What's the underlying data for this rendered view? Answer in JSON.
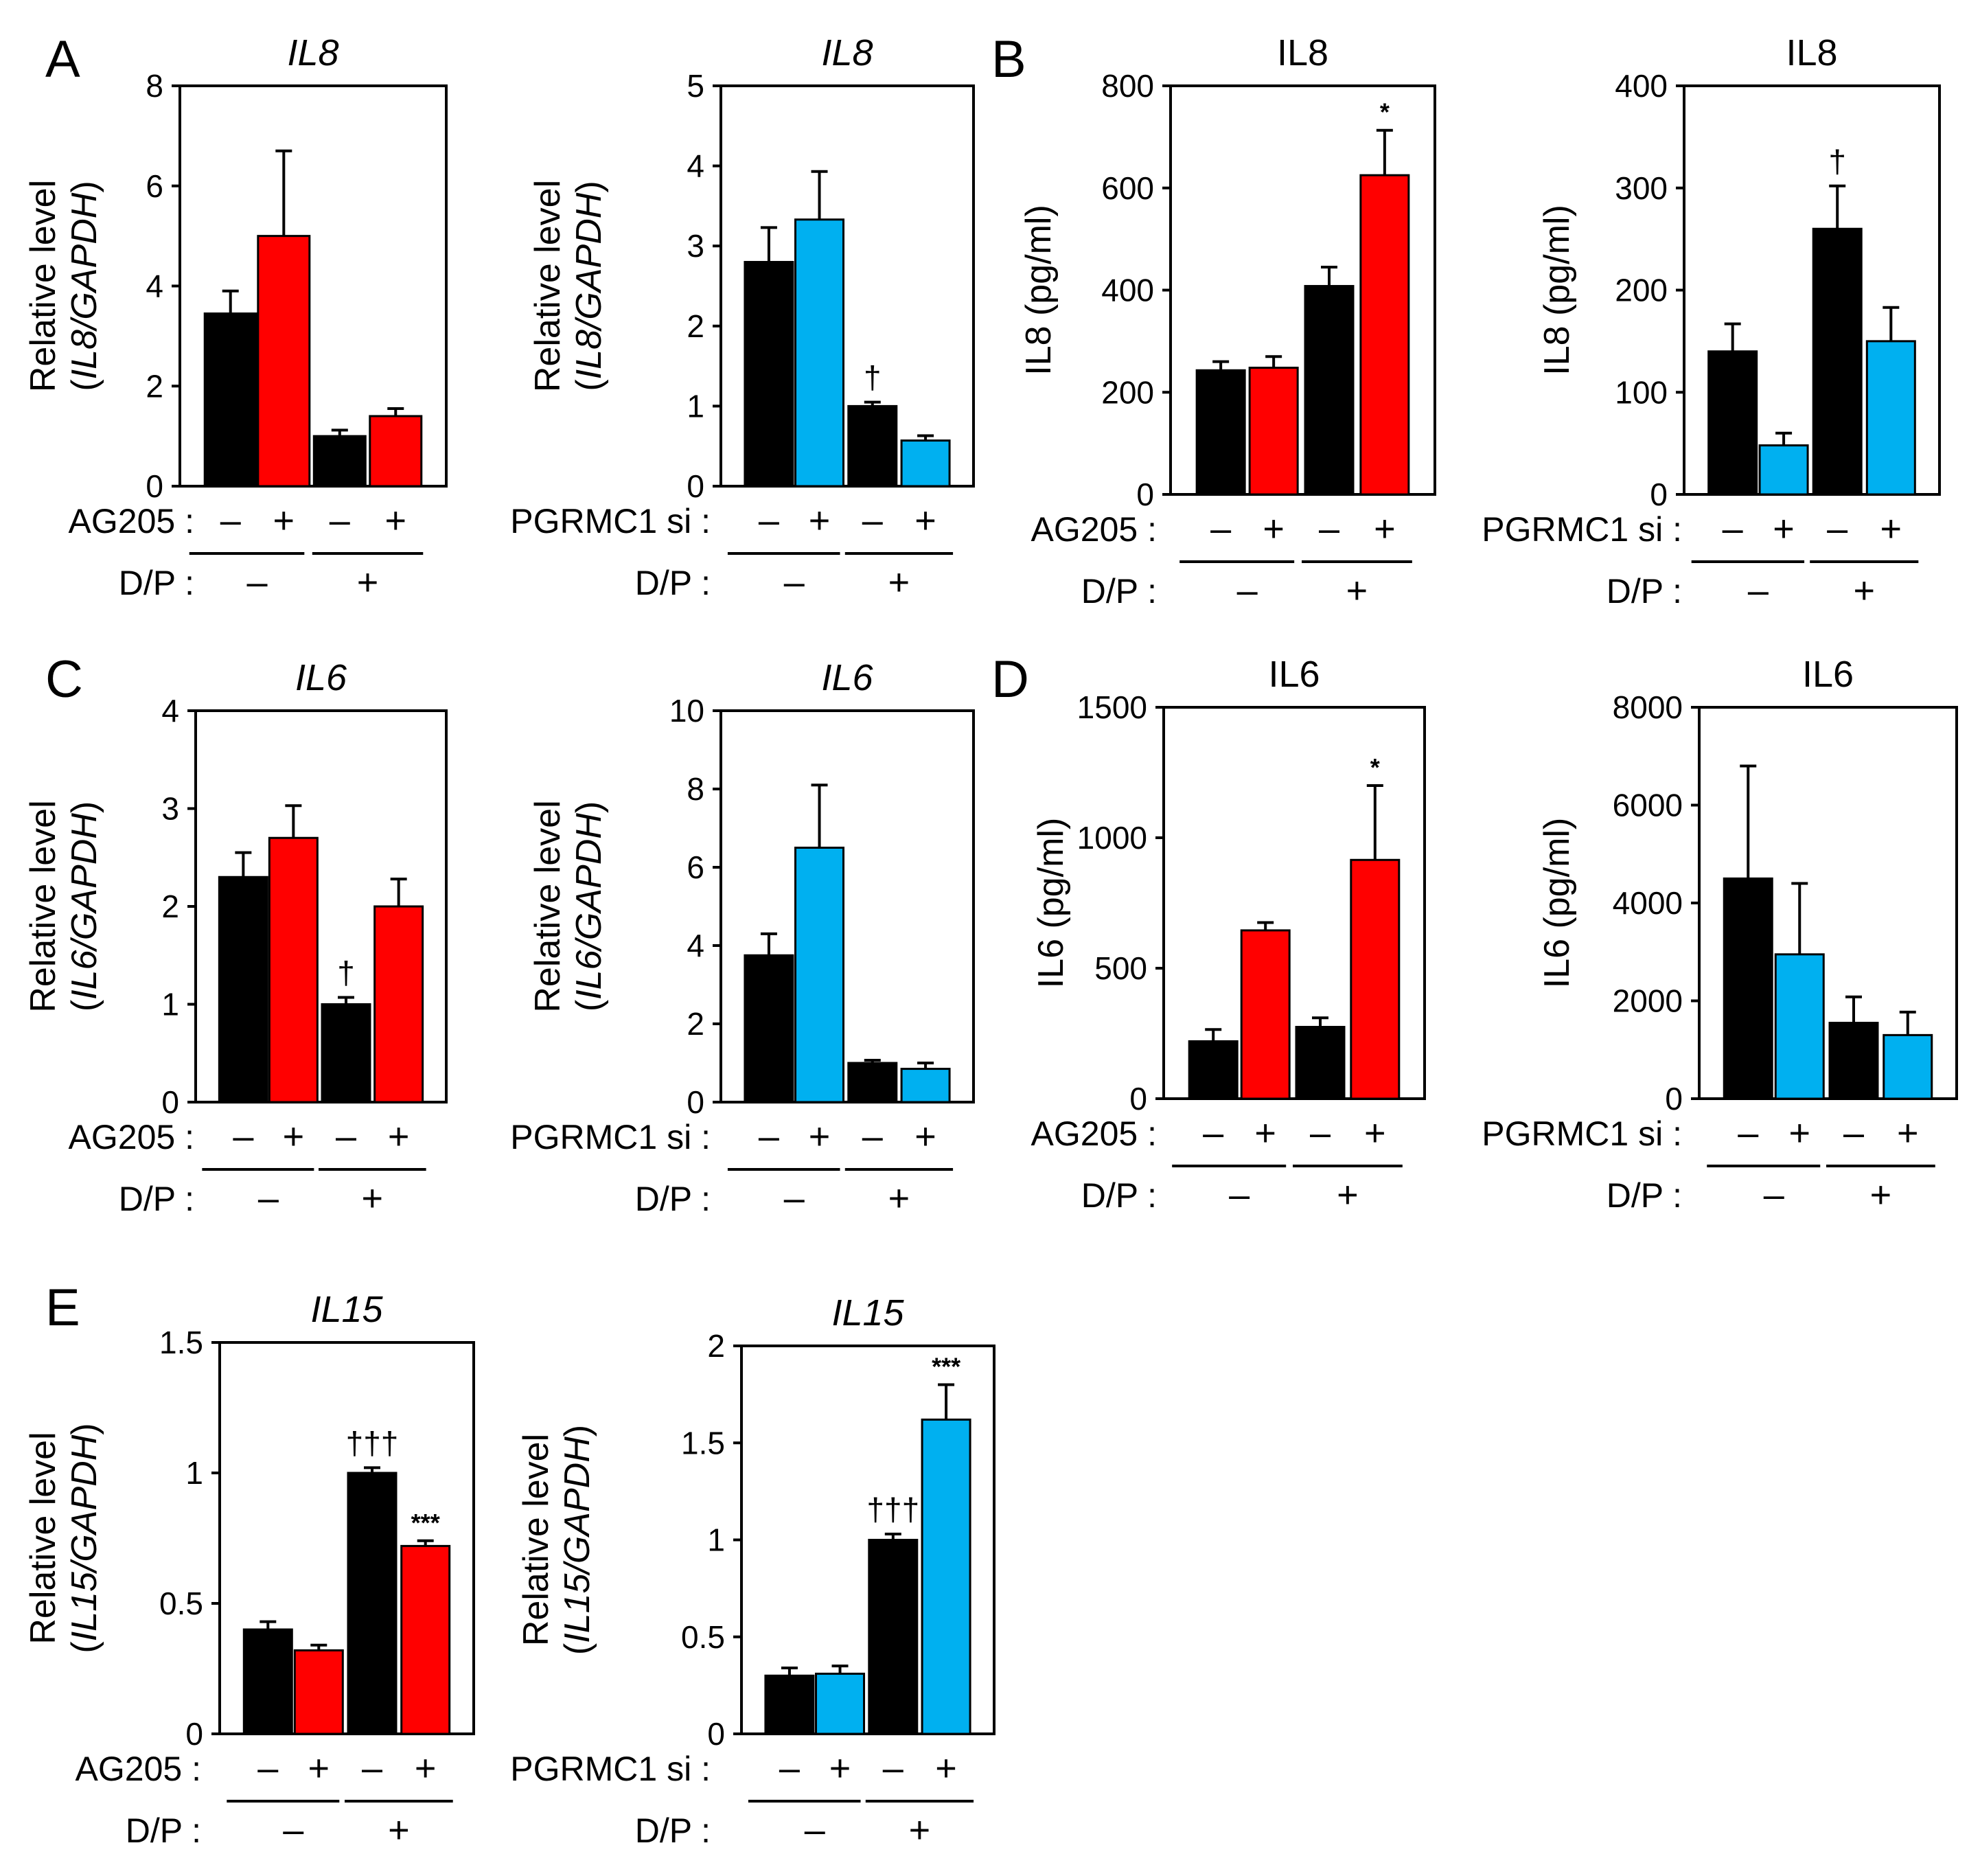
{
  "figure": {
    "panel_letters": [
      "A",
      "B",
      "C",
      "D",
      "E"
    ],
    "colors": {
      "control": "#000000",
      "ag205": "#ff0000",
      "si": "#00b0f0",
      "axis": "#000000"
    },
    "row_labels": {
      "ag205": "AG205 :",
      "pgrmc1": "PGRMC1 si :",
      "dp": "D/P :"
    },
    "sign_minus": "–",
    "sign_plus": "+"
  },
  "chart_data": [
    {
      "id": "A1",
      "type": "bar",
      "title": "IL8",
      "title_italic": true,
      "ylabel1": "Relative level",
      "ylabel2_parts": [
        "(",
        "IL8/GAPDH",
        ")"
      ],
      "ylim": [
        0,
        8
      ],
      "ticks": [
        "0",
        "2",
        "4",
        "6",
        "8"
      ],
      "treatment": "ag205",
      "values": [
        3.45,
        5.0,
        1.0,
        1.4
      ],
      "errors": [
        0.45,
        1.7,
        0.12,
        0.15
      ],
      "annotations": [
        "",
        "",
        "",
        ""
      ]
    },
    {
      "id": "A2",
      "type": "bar",
      "title": "IL8",
      "title_italic": true,
      "ylabel1": "Relative level",
      "ylabel2_parts": [
        "(",
        "IL8/GAPDH",
        ")"
      ],
      "ylim": [
        0,
        5
      ],
      "ticks": [
        "0",
        "1",
        "2",
        "3",
        "4",
        "5"
      ],
      "treatment": "pgrmc1",
      "values": [
        2.8,
        3.33,
        1.0,
        0.57
      ],
      "errors": [
        0.43,
        0.6,
        0.05,
        0.06
      ],
      "annotations": [
        "",
        "",
        "†",
        ""
      ]
    },
    {
      "id": "B1",
      "type": "bar",
      "title": "IL8",
      "title_italic": false,
      "ylabel1": "IL8 (pg/ml)",
      "ylabel2_parts": [],
      "ylim": [
        0,
        800
      ],
      "ticks": [
        "0",
        "200",
        "400",
        "600",
        "800"
      ],
      "treatment": "ag205",
      "values": [
        243,
        248,
        408,
        625
      ],
      "errors": [
        17,
        22,
        37,
        88
      ],
      "annotations": [
        "",
        "",
        "",
        "*"
      ]
    },
    {
      "id": "B2",
      "type": "bar",
      "title": "IL8",
      "title_italic": false,
      "ylabel1": "IL8 (pg/ml)",
      "ylabel2_parts": [],
      "ylim": [
        0,
        400
      ],
      "ticks": [
        "0",
        "100",
        "200",
        "300",
        "400"
      ],
      "treatment": "pgrmc1",
      "values": [
        140,
        48,
        260,
        150
      ],
      "errors": [
        27,
        12,
        42,
        33
      ],
      "annotations": [
        "",
        "",
        "†",
        ""
      ]
    },
    {
      "id": "C1",
      "type": "bar",
      "title": "IL6",
      "title_italic": true,
      "ylabel1": "Relative level",
      "ylabel2_parts": [
        "(",
        "IL6/GAPDH",
        ")"
      ],
      "ylim": [
        0,
        4
      ],
      "ticks": [
        "0",
        "1",
        "2",
        "3",
        "4"
      ],
      "treatment": "ag205",
      "values": [
        2.3,
        2.7,
        1.0,
        2.0
      ],
      "errors": [
        0.25,
        0.33,
        0.07,
        0.28
      ],
      "annotations": [
        "",
        "",
        "†",
        ""
      ]
    },
    {
      "id": "C2",
      "type": "bar",
      "title": "IL6",
      "title_italic": true,
      "ylabel1": "Relative level",
      "ylabel2_parts": [
        "(",
        "IL6/GAPDH",
        ")"
      ],
      "ylim": [
        0,
        10
      ],
      "ticks": [
        "0",
        "2",
        "4",
        "6",
        "8",
        "10"
      ],
      "treatment": "pgrmc1",
      "values": [
        3.75,
        6.5,
        1.0,
        0.85
      ],
      "errors": [
        0.55,
        1.6,
        0.07,
        0.15
      ],
      "annotations": [
        "",
        "",
        "",
        ""
      ]
    },
    {
      "id": "D1",
      "type": "bar",
      "title": "IL6",
      "title_italic": false,
      "ylabel1": "IL6 (pg/ml)",
      "ylabel2_parts": [],
      "ylim": [
        0,
        1500
      ],
      "ticks": [
        "0",
        "500",
        "1000",
        "1500"
      ],
      "treatment": "ag205",
      "values": [
        220,
        645,
        275,
        915
      ],
      "errors": [
        45,
        30,
        35,
        285
      ],
      "annotations": [
        "",
        "",
        "",
        "*"
      ]
    },
    {
      "id": "D2",
      "type": "bar",
      "title": "IL6",
      "title_italic": false,
      "ylabel1": "IL6 (pg/ml)",
      "ylabel2_parts": [],
      "ylim": [
        0,
        8000
      ],
      "ticks": [
        "0",
        "2000",
        "4000",
        "6000",
        "8000"
      ],
      "treatment": "pgrmc1",
      "values": [
        4500,
        2950,
        1550,
        1300
      ],
      "errors": [
        2300,
        1450,
        530,
        470
      ],
      "annotations": [
        "",
        "",
        "",
        ""
      ]
    },
    {
      "id": "E1",
      "type": "bar",
      "title": "IL15",
      "title_italic": true,
      "ylabel1": "Relative level",
      "ylabel2_parts": [
        "(",
        "IL15/GAPDH",
        ")"
      ],
      "ylim": [
        0,
        1.5
      ],
      "ticks": [
        "0",
        "0.5",
        "1",
        "1.5"
      ],
      "treatment": "ag205",
      "values": [
        0.4,
        0.32,
        1.0,
        0.72
      ],
      "errors": [
        0.03,
        0.02,
        0.02,
        0.02
      ],
      "annotations": [
        "",
        "",
        "†††",
        "***"
      ]
    },
    {
      "id": "E2",
      "type": "bar",
      "title": "IL15",
      "title_italic": true,
      "ylabel1": "Relative level",
      "ylabel2_parts": [
        "(",
        "IL15/GAPDH",
        ")"
      ],
      "ylim": [
        0,
        2
      ],
      "ticks": [
        "0",
        "0.5",
        "1",
        "1.5",
        "2"
      ],
      "treatment": "pgrmc1",
      "values": [
        0.3,
        0.31,
        1.0,
        1.62
      ],
      "errors": [
        0.04,
        0.04,
        0.03,
        0.18
      ],
      "annotations": [
        "",
        "",
        "†††",
        "***"
      ]
    }
  ]
}
